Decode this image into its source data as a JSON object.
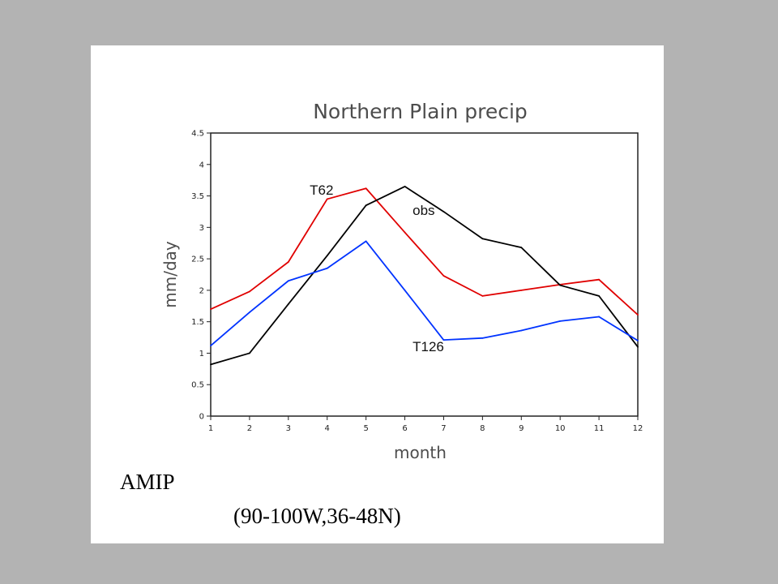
{
  "slide": {
    "caption_main": "AMIP",
    "caption_region": "(90-100W,36-48N)",
    "background_color": "#b3b3b3"
  },
  "chart_data": {
    "type": "line",
    "title": "Northern Plain precip",
    "xlabel": "month",
    "ylabel": "mm/day",
    "x": [
      1,
      2,
      3,
      4,
      5,
      6,
      7,
      8,
      9,
      10,
      11,
      12
    ],
    "xlim": [
      1,
      12
    ],
    "ylim": [
      0,
      4.5
    ],
    "yticks": [
      "0",
      "0.5",
      "1",
      "1.5",
      "2",
      "2.5",
      "3",
      "3.5",
      "4",
      "4.5"
    ],
    "xticks": [
      "1",
      "2",
      "3",
      "4",
      "5",
      "6",
      "7",
      "8",
      "9",
      "10",
      "11",
      "12"
    ],
    "grid": false,
    "legend": "none",
    "series": [
      {
        "name": "T62",
        "color": "#e00000",
        "values": [
          1.7,
          1.98,
          2.45,
          3.45,
          3.62,
          2.92,
          2.23,
          1.91,
          2.0,
          2.09,
          2.17,
          1.61
        ]
      },
      {
        "name": "obs",
        "color": "#000000",
        "values": [
          0.82,
          1.0,
          1.78,
          2.55,
          3.35,
          3.65,
          3.25,
          2.82,
          2.68,
          2.08,
          1.91,
          1.1
        ]
      },
      {
        "name": "T126",
        "color": "#0033ff",
        "values": [
          1.12,
          1.65,
          2.15,
          2.35,
          2.78,
          2.0,
          1.21,
          1.24,
          1.36,
          1.51,
          1.58,
          1.2
        ]
      }
    ]
  }
}
